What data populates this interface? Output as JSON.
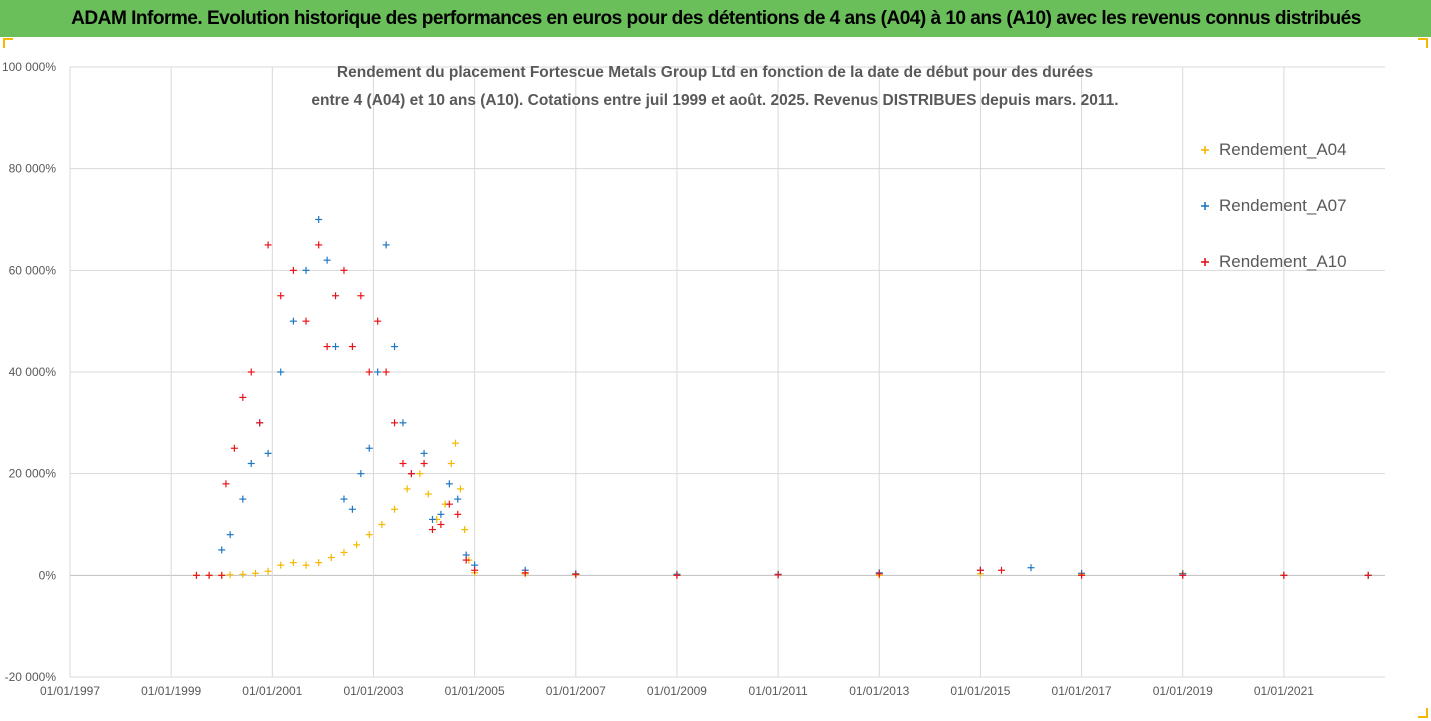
{
  "header": {
    "banner_text": "ADAM Informe. Evolution historique des performances en euros pour des détentions de 4 ans (A04) à 10 ans (A10) avec les revenus connus distribués"
  },
  "colors": {
    "banner_bg": "#6bbf5a",
    "A04": "#f5b800",
    "A07": "#1f77c4",
    "A10": "#e8141b",
    "grid": "#d9d9d9",
    "axis_text": "#595959"
  },
  "chart_data": {
    "type": "scatter",
    "title_line1": "Rendement du placement Fortescue Metals Group Ltd en fonction de la date de début pour des durées",
    "title_line2": "entre 4 (A04) et 10 ans (A10). Cotations entre juil 1999 et août. 2025. Revenus DISTRIBUES depuis mars. 2011.",
    "marker": "+",
    "x_ticks": [
      "01/01/1997",
      "01/01/1999",
      "01/01/2001",
      "01/01/2003",
      "01/01/2005",
      "01/01/2007",
      "01/01/2009",
      "01/01/2011",
      "01/01/2013",
      "01/01/2015",
      "01/01/2017",
      "01/01/2019",
      "01/01/2021"
    ],
    "y_ticks": [
      "-20 000%",
      "0%",
      "20 000%",
      "40 000%",
      "60 000%",
      "80 000%",
      "100 000%"
    ],
    "xlim": [
      "1997-01-01",
      "2022-12-31"
    ],
    "ylim": [
      -20000,
      100000
    ],
    "grid": true,
    "legend_position": "right",
    "series": [
      {
        "name": "Rendement_A04",
        "color": "#f5b800",
        "points": [
          [
            "1999-07-01",
            0
          ],
          [
            "1999-10-01",
            0
          ],
          [
            "2000-01-01",
            0
          ],
          [
            "2000-03-01",
            100
          ],
          [
            "2000-06-01",
            200
          ],
          [
            "2000-09-01",
            400
          ],
          [
            "2000-12-01",
            800
          ],
          [
            "2001-03-01",
            2000
          ],
          [
            "2001-06-01",
            2500
          ],
          [
            "2001-09-01",
            2000
          ],
          [
            "2001-12-01",
            2500
          ],
          [
            "2002-03-01",
            3500
          ],
          [
            "2002-06-01",
            4500
          ],
          [
            "2002-09-01",
            6000
          ],
          [
            "2002-12-01",
            8000
          ],
          [
            "2003-03-01",
            10000
          ],
          [
            "2003-06-01",
            13000
          ],
          [
            "2003-09-01",
            17000
          ],
          [
            "2003-12-01",
            20000
          ],
          [
            "2004-02-01",
            16000
          ],
          [
            "2004-04-01",
            11000
          ],
          [
            "2004-06-01",
            14000
          ],
          [
            "2004-07-15",
            22000
          ],
          [
            "2004-08-15",
            26000
          ],
          [
            "2004-09-20",
            17000
          ],
          [
            "2004-10-20",
            9000
          ],
          [
            "2004-11-20",
            3000
          ],
          [
            "2005-01-01",
            500
          ],
          [
            "2006-01-01",
            300
          ],
          [
            "2007-01-01",
            100
          ],
          [
            "2009-01-01",
            200
          ],
          [
            "2011-01-01",
            100
          ],
          [
            "2013-01-01",
            0
          ],
          [
            "2015-01-01",
            300
          ],
          [
            "2017-01-01",
            200
          ],
          [
            "2019-01-01",
            400
          ],
          [
            "2021-01-01",
            0
          ],
          [
            "2022-09-01",
            0
          ]
        ]
      },
      {
        "name": "Rendement_A07",
        "color": "#1f77c4",
        "points": [
          [
            "2000-01-01",
            5000
          ],
          [
            "2000-03-01",
            8000
          ],
          [
            "2000-06-01",
            15000
          ],
          [
            "2000-08-01",
            22000
          ],
          [
            "2000-10-01",
            30000
          ],
          [
            "2000-12-01",
            24000
          ],
          [
            "2001-03-01",
            40000
          ],
          [
            "2001-06-01",
            50000
          ],
          [
            "2001-09-01",
            60000
          ],
          [
            "2001-12-01",
            70000
          ],
          [
            "2002-02-01",
            62000
          ],
          [
            "2002-04-01",
            45000
          ],
          [
            "2002-06-01",
            15000
          ],
          [
            "2002-08-01",
            13000
          ],
          [
            "2002-10-01",
            20000
          ],
          [
            "2002-12-01",
            25000
          ],
          [
            "2003-02-01",
            40000
          ],
          [
            "2003-04-01",
            65000
          ],
          [
            "2003-06-01",
            45000
          ],
          [
            "2003-08-01",
            30000
          ],
          [
            "2003-10-01",
            20000
          ],
          [
            "2004-01-01",
            24000
          ],
          [
            "2004-03-01",
            11000
          ],
          [
            "2004-05-01",
            12000
          ],
          [
            "2004-07-01",
            18000
          ],
          [
            "2004-09-01",
            15000
          ],
          [
            "2004-11-01",
            4000
          ],
          [
            "2005-01-01",
            2000
          ],
          [
            "2006-01-01",
            1000
          ],
          [
            "2007-01-01",
            300
          ],
          [
            "2009-01-01",
            200
          ],
          [
            "2011-01-01",
            200
          ],
          [
            "2013-01-01",
            500
          ],
          [
            "2015-01-01",
            1000
          ],
          [
            "2016-01-01",
            1500
          ],
          [
            "2017-01-01",
            400
          ],
          [
            "2019-01-01",
            300
          ],
          [
            "2021-01-01",
            0
          ],
          [
            "2022-09-01",
            0
          ]
        ]
      },
      {
        "name": "Rendement_A10",
        "color": "#e8141b",
        "points": [
          [
            "1999-07-01",
            0
          ],
          [
            "1999-10-01",
            0
          ],
          [
            "2000-01-01",
            0
          ],
          [
            "2000-02-01",
            18000
          ],
          [
            "2000-04-01",
            25000
          ],
          [
            "2000-06-01",
            35000
          ],
          [
            "2000-08-01",
            40000
          ],
          [
            "2000-10-01",
            30000
          ],
          [
            "2000-12-01",
            65000
          ],
          [
            "2001-03-01",
            55000
          ],
          [
            "2001-06-01",
            60000
          ],
          [
            "2001-09-01",
            50000
          ],
          [
            "2001-12-01",
            65000
          ],
          [
            "2002-02-01",
            45000
          ],
          [
            "2002-04-01",
            55000
          ],
          [
            "2002-06-01",
            60000
          ],
          [
            "2002-08-01",
            45000
          ],
          [
            "2002-10-01",
            55000
          ],
          [
            "2002-12-01",
            40000
          ],
          [
            "2003-02-01",
            50000
          ],
          [
            "2003-04-01",
            40000
          ],
          [
            "2003-06-01",
            30000
          ],
          [
            "2003-08-01",
            22000
          ],
          [
            "2003-10-01",
            20000
          ],
          [
            "2004-01-01",
            22000
          ],
          [
            "2004-03-01",
            9000
          ],
          [
            "2004-05-01",
            10000
          ],
          [
            "2004-07-01",
            14000
          ],
          [
            "2004-09-01",
            12000
          ],
          [
            "2004-11-01",
            3000
          ],
          [
            "2005-01-01",
            1000
          ],
          [
            "2006-01-01",
            500
          ],
          [
            "2007-01-01",
            200
          ],
          [
            "2009-01-01",
            0
          ],
          [
            "2011-01-01",
            100
          ],
          [
            "2013-01-01",
            300
          ],
          [
            "2015-01-01",
            1000
          ],
          [
            "2015-06-01",
            1000
          ],
          [
            "2017-01-01",
            0
          ],
          [
            "2019-01-01",
            0
          ],
          [
            "2021-01-01",
            0
          ],
          [
            "2022-09-01",
            0
          ]
        ]
      }
    ]
  }
}
